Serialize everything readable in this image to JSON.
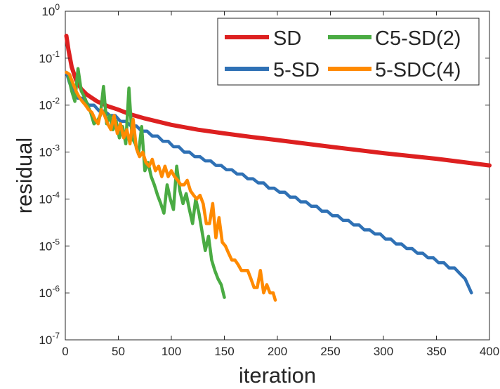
{
  "chart_data": {
    "type": "line",
    "xlabel": "iteration",
    "ylabel": "residual",
    "xlim": [
      0,
      400
    ],
    "ylim": [
      1e-07,
      1
    ],
    "yscale": "log",
    "grid": false,
    "legend_position": "top-right",
    "x_ticks": [
      {
        "value": 0,
        "label": "0"
      },
      {
        "value": 50,
        "label": "50"
      },
      {
        "value": 100,
        "label": "100"
      },
      {
        "value": 150,
        "label": "150"
      },
      {
        "value": 200,
        "label": "200"
      },
      {
        "value": 250,
        "label": "250"
      },
      {
        "value": 300,
        "label": "300"
      },
      {
        "value": 350,
        "label": "350"
      },
      {
        "value": 400,
        "label": "400"
      }
    ],
    "y_ticks": [
      {
        "value": 1e-07,
        "base": "10",
        "exp": "-7"
      },
      {
        "value": 1e-06,
        "base": "10",
        "exp": "-6"
      },
      {
        "value": 1e-05,
        "base": "10",
        "exp": "-5"
      },
      {
        "value": 0.0001,
        "base": "10",
        "exp": "-4"
      },
      {
        "value": 0.001,
        "base": "10",
        "exp": "-3"
      },
      {
        "value": 0.01,
        "base": "10",
        "exp": "-2"
      },
      {
        "value": 0.1,
        "base": "10",
        "exp": "-1"
      },
      {
        "value": 1,
        "base": "10",
        "exp": "0"
      }
    ],
    "series": [
      {
        "name": "SD",
        "color": "#dd2020",
        "x": [
          1,
          3,
          6,
          10,
          15,
          20,
          30,
          40,
          50,
          60,
          75,
          100,
          125,
          150,
          175,
          200,
          250,
          300,
          350,
          400
        ],
        "y": [
          0.3,
          0.15,
          0.065,
          0.035,
          0.022,
          0.017,
          0.012,
          0.0095,
          0.008,
          0.0065,
          0.0052,
          0.0038,
          0.003,
          0.0025,
          0.0021,
          0.0018,
          0.0013,
          0.00095,
          0.00072,
          0.00052
        ]
      },
      {
        "name": "5-SD",
        "color": "#2f71b5",
        "x": [
          1,
          4,
          8,
          12,
          17,
          22,
          27,
          32,
          37,
          42,
          47,
          52,
          57,
          62,
          67,
          72,
          77,
          82,
          87,
          92,
          97,
          102,
          107,
          112,
          117,
          122,
          127,
          132,
          137,
          142,
          147,
          152,
          157,
          162,
          167,
          172,
          177,
          182,
          187,
          192,
          197,
          202,
          207,
          212,
          217,
          222,
          227,
          232,
          237,
          242,
          247,
          252,
          257,
          262,
          267,
          272,
          277,
          282,
          287,
          292,
          297,
          302,
          307,
          312,
          317,
          322,
          327,
          332,
          337,
          342,
          347,
          352,
          357,
          362,
          367,
          372,
          377,
          383
        ],
        "y": [
          0.05,
          0.03,
          0.018,
          0.014,
          0.014,
          0.01,
          0.01,
          0.0075,
          0.0075,
          0.006,
          0.006,
          0.0045,
          0.0045,
          0.0036,
          0.0036,
          0.0028,
          0.0028,
          0.0022,
          0.0022,
          0.0017,
          0.0017,
          0.0013,
          0.0013,
          0.001,
          0.001,
          0.0008,
          0.0008,
          0.00065,
          0.00065,
          0.00052,
          0.00052,
          0.00042,
          0.00042,
          0.00034,
          0.00034,
          0.00027,
          0.00027,
          0.00022,
          0.00022,
          0.00017,
          0.00017,
          0.00014,
          0.00014,
          0.00011,
          0.00011,
          8.7e-05,
          8.7e-05,
          7e-05,
          7e-05,
          5.5e-05,
          5.5e-05,
          4.4e-05,
          4.4e-05,
          3.5e-05,
          3.5e-05,
          2.8e-05,
          2.8e-05,
          2.2e-05,
          2.2e-05,
          1.8e-05,
          1.8e-05,
          1.4e-05,
          1.4e-05,
          1.1e-05,
          1.1e-05,
          8.8e-06,
          8.8e-06,
          7e-06,
          7e-06,
          5.6e-06,
          5.6e-06,
          4.4e-06,
          4.4e-06,
          3.4e-06,
          3.4e-06,
          2.6e-06,
          2e-06,
          1e-06
        ]
      },
      {
        "name": "C5-SD(2)",
        "color": "#4aab43",
        "x": [
          3,
          6,
          9,
          12,
          15,
          18,
          21,
          24,
          27,
          30,
          33,
          36,
          39,
          42,
          45,
          48,
          51,
          54,
          57,
          60,
          63,
          66,
          69,
          72,
          75,
          78,
          81,
          84,
          87,
          90,
          93,
          96,
          99,
          102,
          105,
          108,
          111,
          114,
          117,
          120,
          123,
          126,
          129,
          132,
          135,
          138,
          141,
          144,
          147,
          150
        ],
        "y": [
          0.04,
          0.02,
          0.012,
          0.06,
          0.02,
          0.015,
          0.01,
          0.007,
          0.004,
          0.0045,
          0.006,
          0.025,
          0.004,
          0.006,
          0.003,
          0.0045,
          0.002,
          0.0035,
          0.0015,
          0.023,
          0.002,
          0.0015,
          0.0009,
          0.0035,
          0.0004,
          0.0006,
          0.0003,
          0.0002,
          0.00012,
          8e-05,
          5e-05,
          0.0002,
          0.0001,
          6e-05,
          0.0005,
          0.00015,
          8e-05,
          0.00013,
          6e-05,
          3e-05,
          0.0001,
          5e-05,
          2e-05,
          8e-06,
          1.6e-05,
          5e-06,
          3e-06,
          2e-06,
          1.5e-06,
          8e-07
        ]
      },
      {
        "name": "5-SDC(4)",
        "color": "#ff8a00",
        "x": [
          1,
          4,
          7,
          10,
          13,
          16,
          19,
          22,
          25,
          28,
          31,
          34,
          37,
          40,
          43,
          46,
          49,
          52,
          55,
          58,
          61,
          64,
          67,
          70,
          73,
          76,
          79,
          82,
          85,
          88,
          91,
          94,
          97,
          100,
          103,
          106,
          109,
          112,
          115,
          118,
          121,
          124,
          127,
          130,
          133,
          136,
          139,
          142,
          145,
          148,
          151,
          154,
          157,
          160,
          163,
          166,
          169,
          172,
          175,
          178,
          181,
          184,
          187,
          190,
          193,
          196,
          198
        ],
        "y": [
          0.05,
          0.045,
          0.03,
          0.02,
          0.015,
          0.012,
          0.01,
          0.008,
          0.007,
          0.005,
          0.004,
          0.008,
          0.006,
          0.004,
          0.003,
          0.006,
          0.0025,
          0.004,
          0.002,
          0.003,
          0.0015,
          0.005,
          0.0012,
          0.0008,
          0.001,
          0.0006,
          0.0005,
          0.0007,
          0.0004,
          0.0005,
          0.0003,
          0.0005,
          0.0003,
          0.0004,
          0.0003,
          0.00025,
          0.0002,
          0.0002,
          0.00025,
          0.00015,
          0.00012,
          0.0001,
          0.00012,
          8e-05,
          3e-05,
          3e-05,
          8e-05,
          1.5e-05,
          4e-05,
          1.2e-05,
          1e-05,
          7e-06,
          5e-06,
          5e-06,
          4e-06,
          3e-06,
          3e-06,
          3e-06,
          2e-06,
          1.3e-06,
          1.3e-06,
          3e-06,
          1e-06,
          1.5e-06,
          1e-06,
          1e-06,
          7e-07
        ]
      }
    ]
  }
}
